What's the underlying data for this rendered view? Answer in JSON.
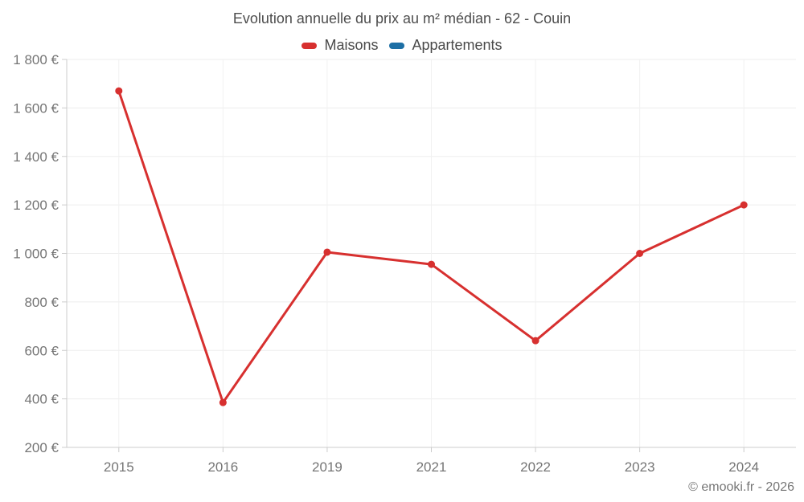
{
  "chart_data": {
    "type": "line",
    "title": "Evolution annuelle du prix au m² médian - 62 - Couin",
    "categories": [
      "2015",
      "2016",
      "2019",
      "2021",
      "2022",
      "2023",
      "2024"
    ],
    "series": [
      {
        "name": "Maisons",
        "color": "#d7302f",
        "values": [
          1670,
          385,
          1005,
          955,
          640,
          1000,
          1200
        ]
      },
      {
        "name": "Appartements",
        "color": "#1d6fa5",
        "values": []
      }
    ],
    "xlabel": "",
    "ylabel": "",
    "ylim": [
      200,
      1800
    ],
    "ytick_values": [
      200,
      400,
      600,
      800,
      1000,
      1200,
      1400,
      1600,
      1800
    ],
    "ytick_labels": [
      "200 €",
      "400 €",
      "600 €",
      "800 €",
      "1 000 €",
      "1 200 €",
      "1 400 €",
      "1 600 €",
      "1 800 €"
    ],
    "grid": true,
    "legend_position": "top"
  },
  "colors": {
    "grid": "#ededed",
    "grid_vertical": "#f1f1f1",
    "axis": "#cccccc",
    "tick_text": "#757575"
  },
  "footer": {
    "credit": "© emooki.fr - 2026"
  }
}
